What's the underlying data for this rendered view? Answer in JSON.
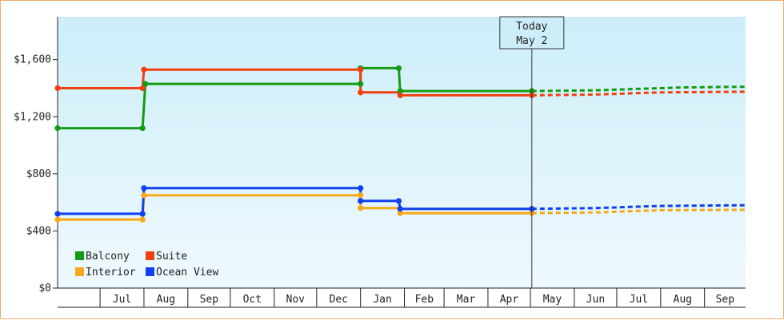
{
  "chart_data": {
    "type": "line",
    "step": true,
    "title": "",
    "xlabel": "",
    "ylabel": "",
    "ylim": [
      0,
      1900
    ],
    "yticks": [
      0,
      400,
      800,
      1200,
      1600
    ],
    "ytick_labels": [
      "$0",
      "$400",
      "$800",
      "$1,200",
      "$1,600"
    ],
    "x_months": [
      "Jul",
      "Aug",
      "Sep",
      "Oct",
      "Nov",
      "Dec",
      "Jan",
      "Feb",
      "Mar",
      "Apr",
      "May",
      "Jun",
      "Jul",
      "Aug",
      "Sep"
    ],
    "xlim": [
      "2018-06-01",
      "2019-09-30"
    ],
    "today_marker": {
      "line1": "Today",
      "line2": "May 2",
      "date": "2019-05-02"
    },
    "legend": {
      "position": "bottom-left"
    },
    "grid": false,
    "series": [
      {
        "name": "Balcony",
        "color": "#139c13",
        "points": [
          [
            "2018-06-01",
            1120
          ],
          [
            "2018-07-31",
            1120
          ],
          [
            "2018-08-02",
            1430
          ],
          [
            "2019-01-01",
            1430
          ],
          [
            "2019-01-01",
            1540
          ],
          [
            "2019-01-28",
            1540
          ],
          [
            "2019-01-29",
            1380
          ],
          [
            "2019-05-02",
            1380
          ]
        ],
        "forecast": [
          [
            "2019-05-02",
            1380
          ],
          [
            "2019-06-15",
            1385
          ],
          [
            "2019-07-01",
            1390
          ],
          [
            "2019-07-15",
            1395
          ],
          [
            "2019-08-01",
            1400
          ],
          [
            "2019-08-15",
            1405
          ],
          [
            "2019-09-30",
            1410
          ]
        ]
      },
      {
        "name": "Suite",
        "color": "#f04010",
        "points": [
          [
            "2018-06-01",
            1400
          ],
          [
            "2018-07-31",
            1400
          ],
          [
            "2018-08-01",
            1530
          ],
          [
            "2019-01-01",
            1530
          ],
          [
            "2019-01-01",
            1370
          ],
          [
            "2019-01-28",
            1370
          ],
          [
            "2019-01-29",
            1350
          ],
          [
            "2019-05-02",
            1350
          ]
        ],
        "forecast": [
          [
            "2019-05-02",
            1350
          ],
          [
            "2019-06-15",
            1355
          ],
          [
            "2019-07-01",
            1360
          ],
          [
            "2019-07-15",
            1365
          ],
          [
            "2019-08-01",
            1370
          ],
          [
            "2019-09-30",
            1375
          ]
        ]
      },
      {
        "name": "Interior",
        "color": "#f6a81a",
        "points": [
          [
            "2018-06-01",
            480
          ],
          [
            "2018-07-31",
            480
          ],
          [
            "2018-08-01",
            650
          ],
          [
            "2019-01-01",
            650
          ],
          [
            "2019-01-01",
            560
          ],
          [
            "2019-01-28",
            560
          ],
          [
            "2019-01-29",
            525
          ],
          [
            "2019-05-02",
            525
          ]
        ],
        "forecast": [
          [
            "2019-05-02",
            525
          ],
          [
            "2019-06-15",
            530
          ],
          [
            "2019-07-01",
            535
          ],
          [
            "2019-07-15",
            540
          ],
          [
            "2019-08-01",
            545
          ],
          [
            "2019-09-30",
            548
          ]
        ]
      },
      {
        "name": "Ocean View",
        "color": "#1040f0",
        "points": [
          [
            "2018-06-01",
            520
          ],
          [
            "2018-07-31",
            520
          ],
          [
            "2018-08-01",
            700
          ],
          [
            "2019-01-01",
            700
          ],
          [
            "2019-01-01",
            610
          ],
          [
            "2019-01-28",
            610
          ],
          [
            "2019-01-29",
            555
          ],
          [
            "2019-05-02",
            555
          ]
        ],
        "forecast": [
          [
            "2019-05-02",
            555
          ],
          [
            "2019-06-15",
            560
          ],
          [
            "2019-07-01",
            565
          ],
          [
            "2019-07-15",
            570
          ],
          [
            "2019-08-01",
            575
          ],
          [
            "2019-09-30",
            580
          ]
        ]
      }
    ],
    "markers": [
      {
        "series": "Balcony",
        "points": [
          [
            "2018-06-01",
            1120
          ],
          [
            "2018-07-31",
            1120
          ],
          [
            "2018-08-02",
            1430
          ],
          [
            "2019-01-01",
            1430
          ],
          [
            "2019-01-01",
            1540
          ],
          [
            "2019-01-28",
            1540
          ],
          [
            "2019-01-29",
            1380
          ],
          [
            "2019-05-02",
            1380
          ]
        ]
      },
      {
        "series": "Suite",
        "points": [
          [
            "2018-06-01",
            1400
          ],
          [
            "2018-07-31",
            1400
          ],
          [
            "2018-08-01",
            1530
          ],
          [
            "2019-01-01",
            1530
          ],
          [
            "2019-01-01",
            1370
          ],
          [
            "2019-01-29",
            1350
          ],
          [
            "2019-05-02",
            1350
          ]
        ]
      },
      {
        "series": "Interior",
        "points": [
          [
            "2018-06-01",
            480
          ],
          [
            "2018-07-31",
            480
          ],
          [
            "2018-08-01",
            650
          ],
          [
            "2019-01-01",
            650
          ],
          [
            "2019-01-01",
            560
          ],
          [
            "2019-01-29",
            525
          ],
          [
            "2019-05-02",
            525
          ]
        ]
      },
      {
        "series": "Ocean View",
        "points": [
          [
            "2018-06-01",
            520
          ],
          [
            "2018-07-31",
            520
          ],
          [
            "2018-08-01",
            700
          ],
          [
            "2019-01-01",
            700
          ],
          [
            "2019-01-01",
            610
          ],
          [
            "2019-01-28",
            610
          ],
          [
            "2019-01-29",
            555
          ],
          [
            "2019-05-02",
            555
          ]
        ]
      }
    ]
  }
}
